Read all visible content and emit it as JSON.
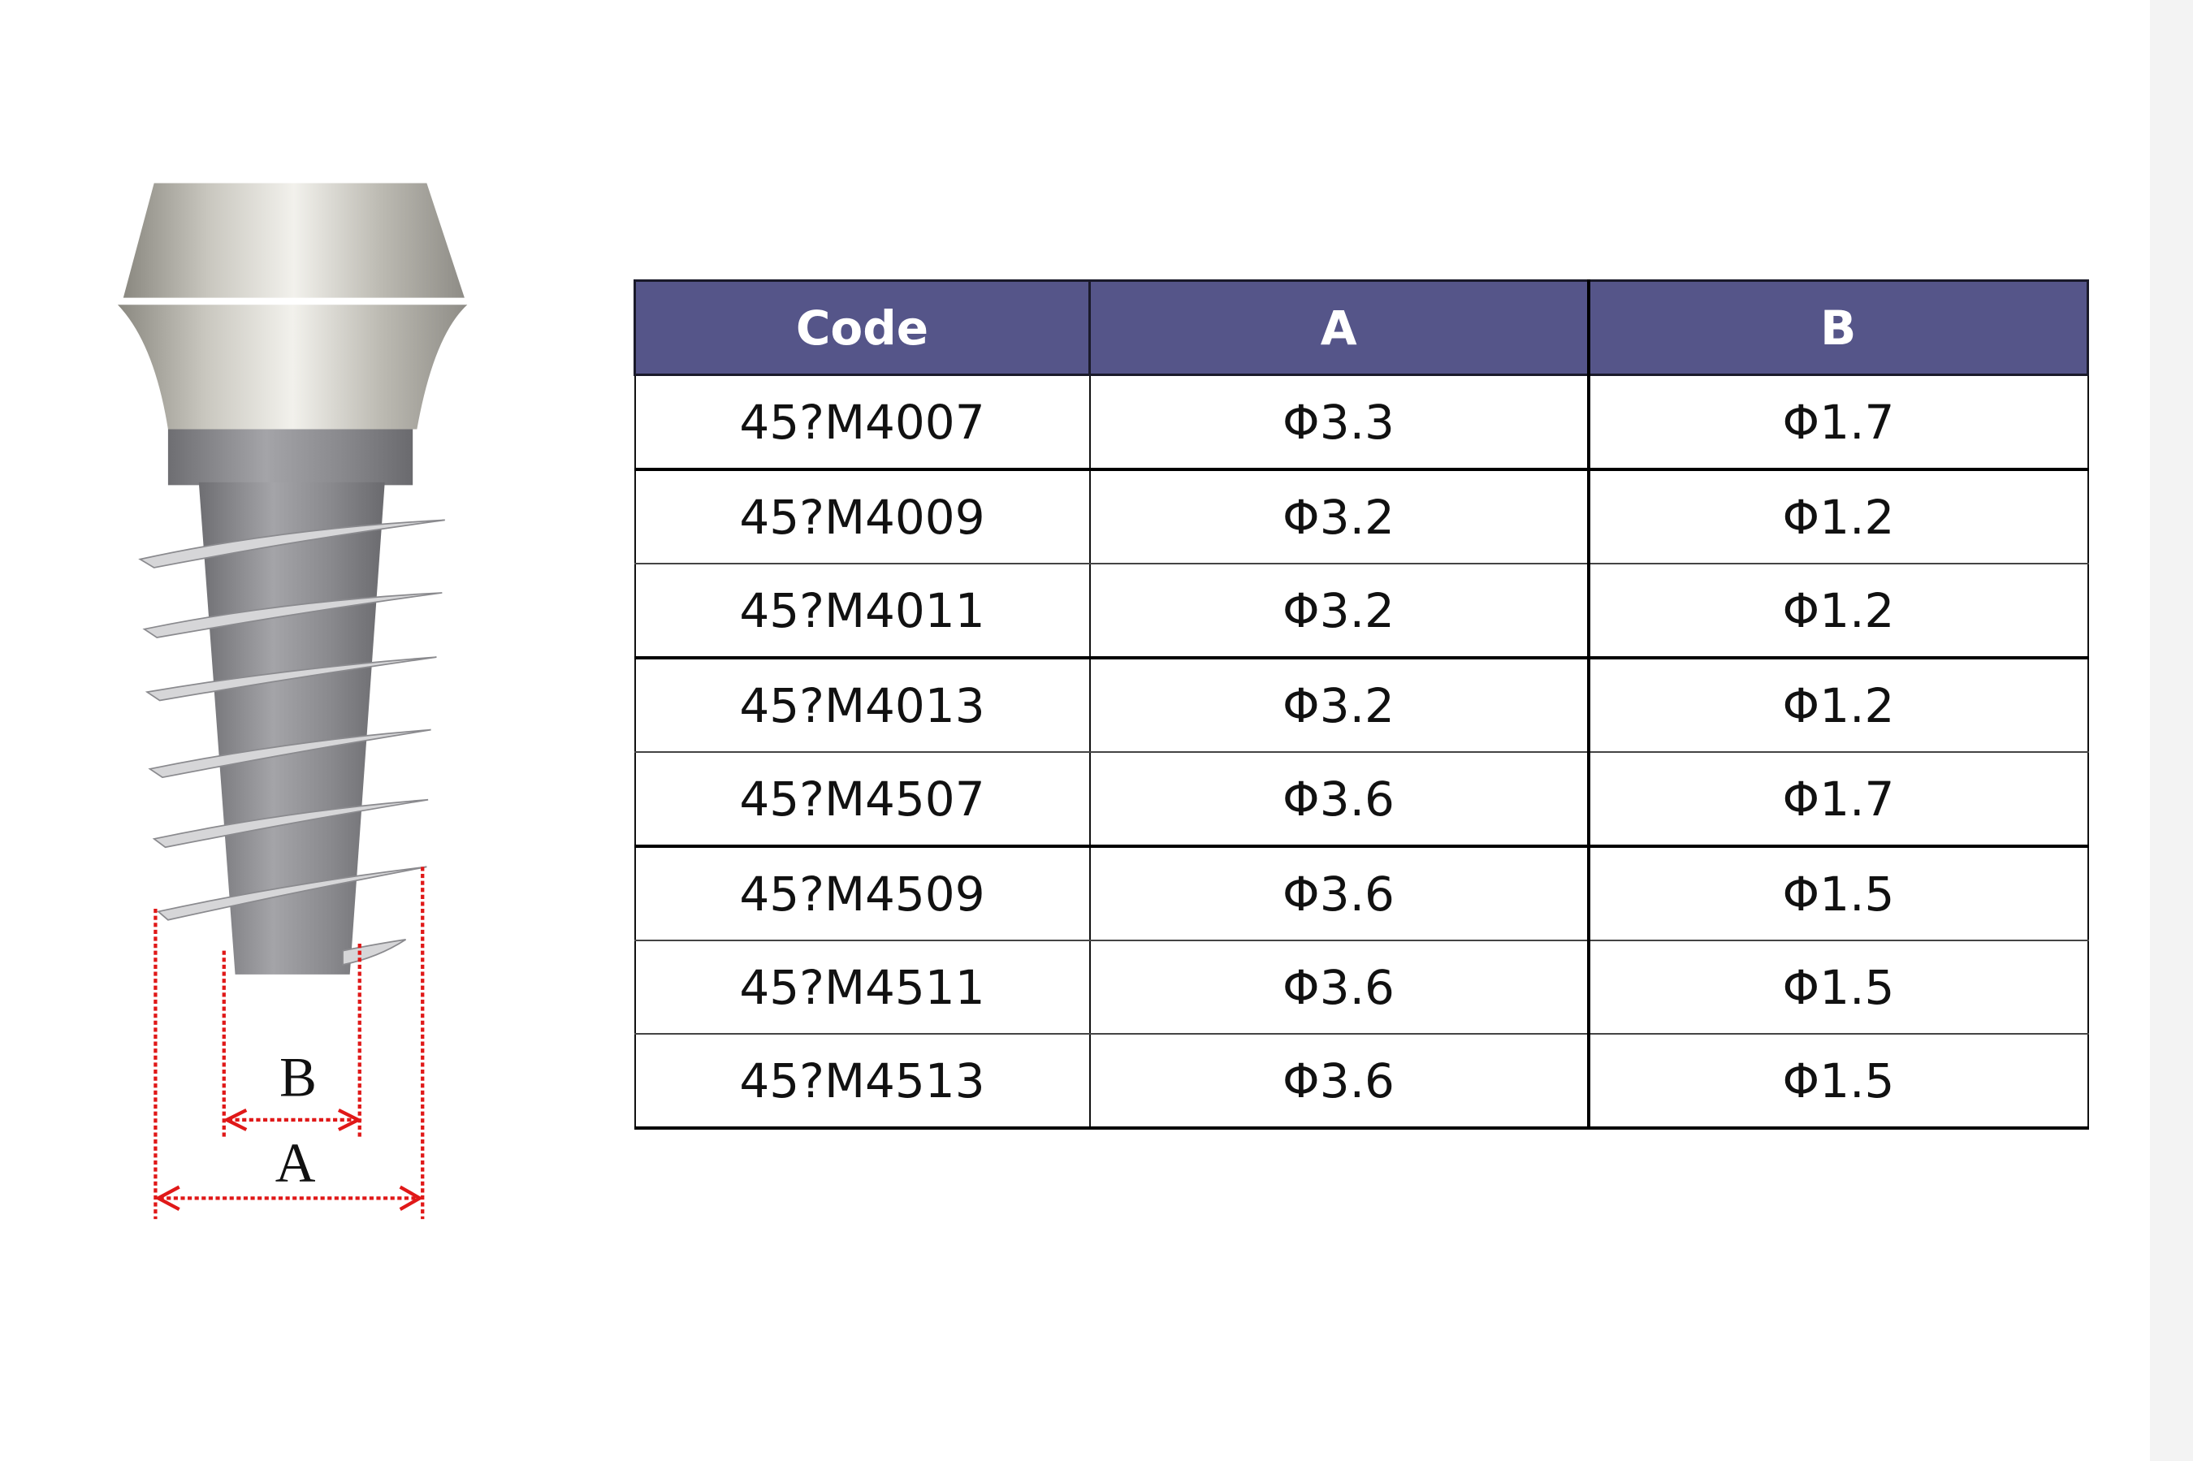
{
  "diagram": {
    "label_b": "B",
    "label_a": "A",
    "dimension_color": "#e01818"
  },
  "table": {
    "header_color": "#555589",
    "headers": [
      "Code",
      "A",
      "B"
    ],
    "rows": [
      [
        "45?M4007",
        "Φ3.3",
        "Φ1.7"
      ],
      [
        "45?M4009",
        "Φ3.2",
        "Φ1.2"
      ],
      [
        "45?M4011",
        "Φ3.2",
        "Φ1.2"
      ],
      [
        "45?M4013",
        "Φ3.2",
        "Φ1.2"
      ],
      [
        "45?M4507",
        "Φ3.6",
        "Φ1.7"
      ],
      [
        "45?M4509",
        "Φ3.6",
        "Φ1.5"
      ],
      [
        "45?M4511",
        "Φ3.6",
        "Φ1.5"
      ],
      [
        "45?M4513",
        "Φ3.6",
        "Φ1.5"
      ]
    ]
  }
}
